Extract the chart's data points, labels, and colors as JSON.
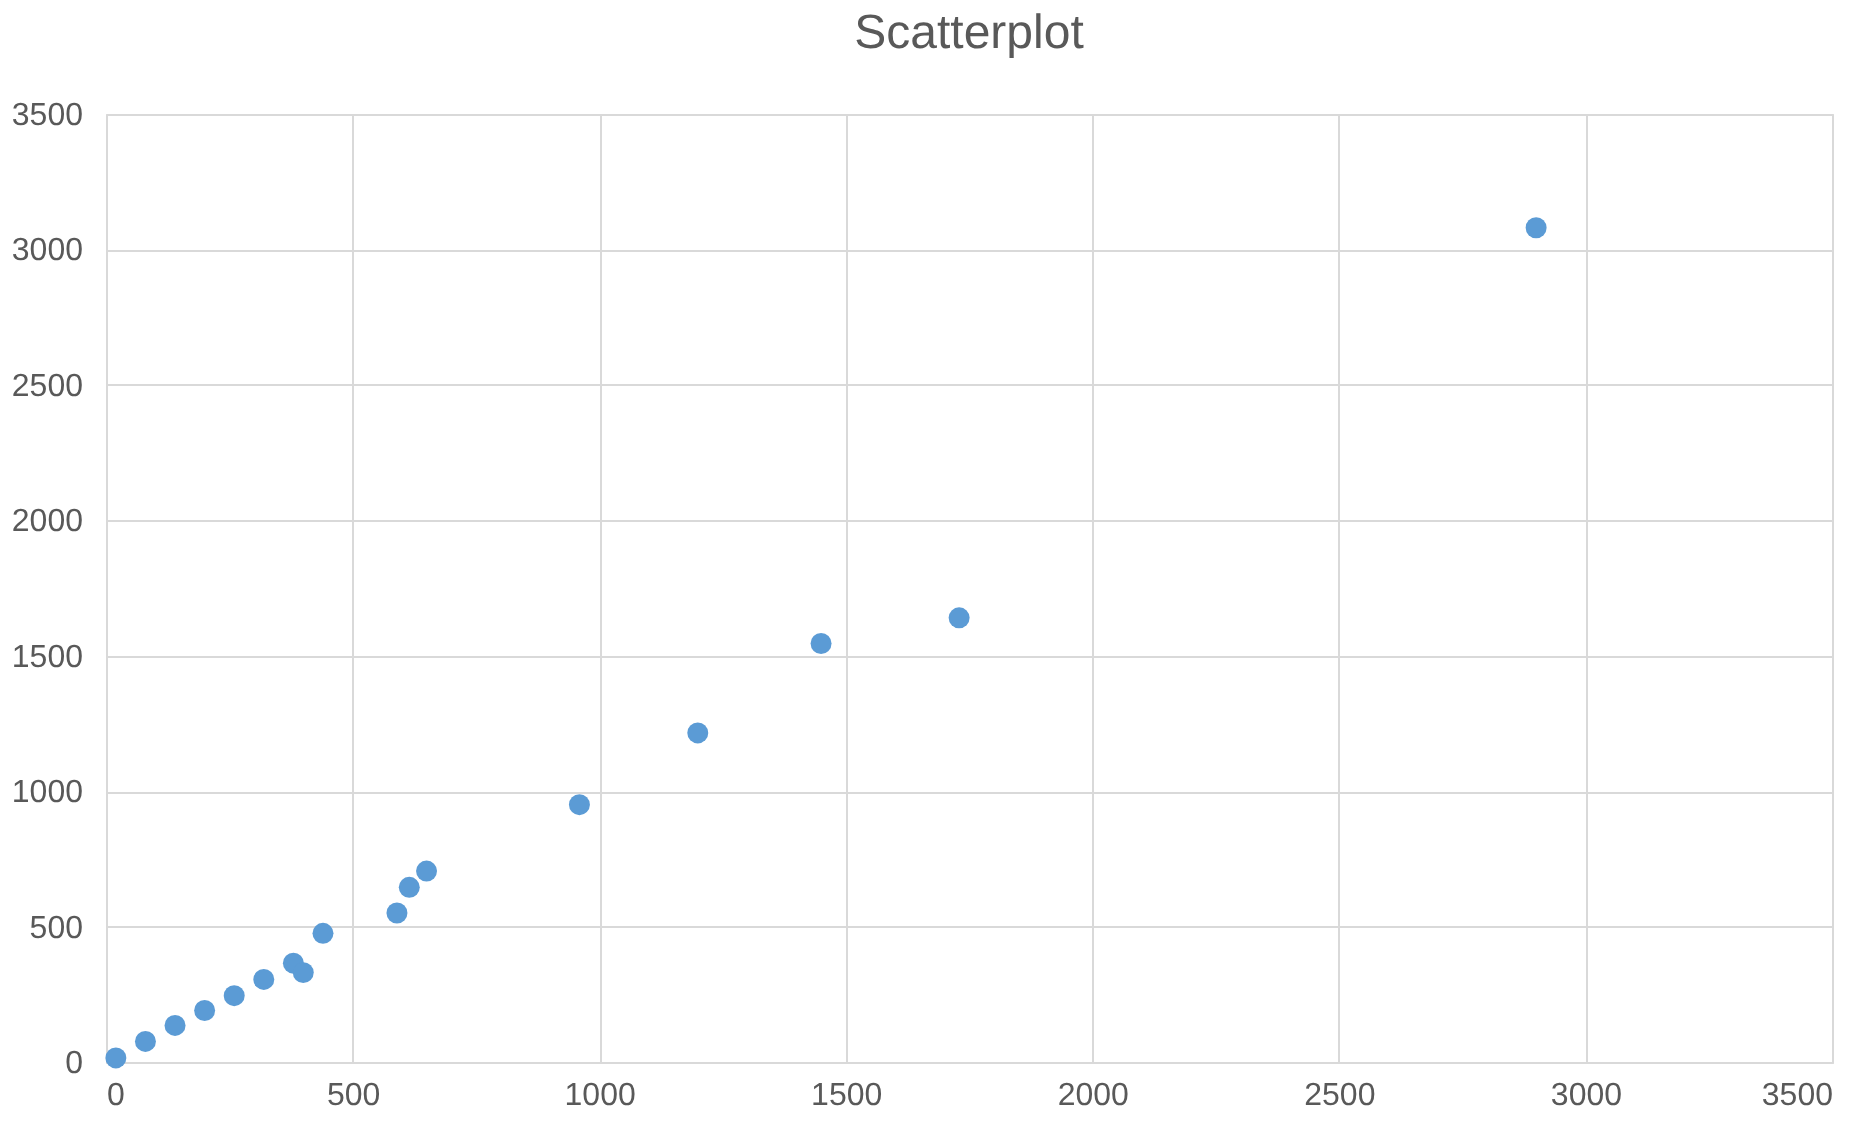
{
  "chart_data": {
    "type": "scatter",
    "title": "Scatterplot",
    "x": [
      20,
      80,
      140,
      200,
      260,
      320,
      380,
      400,
      440,
      590,
      615,
      650,
      960,
      1200,
      1450,
      1730,
      2900
    ],
    "series": [
      {
        "color": "#5b9bd5",
        "values": [
          15,
          76,
          135,
          190,
          245,
          305,
          365,
          330,
          475,
          550,
          645,
          705,
          950,
          1215,
          1545,
          1640,
          3080
        ]
      }
    ],
    "xlim": [
      0,
      3500
    ],
    "ylim": [
      0,
      3500
    ],
    "xticks": [
      0,
      500,
      1000,
      1500,
      2000,
      2500,
      3000,
      3500
    ],
    "yticks": [
      0,
      500,
      1000,
      1500,
      2000,
      2500,
      3000,
      3500
    ],
    "grid": true,
    "marker": "circle",
    "legend": false
  }
}
